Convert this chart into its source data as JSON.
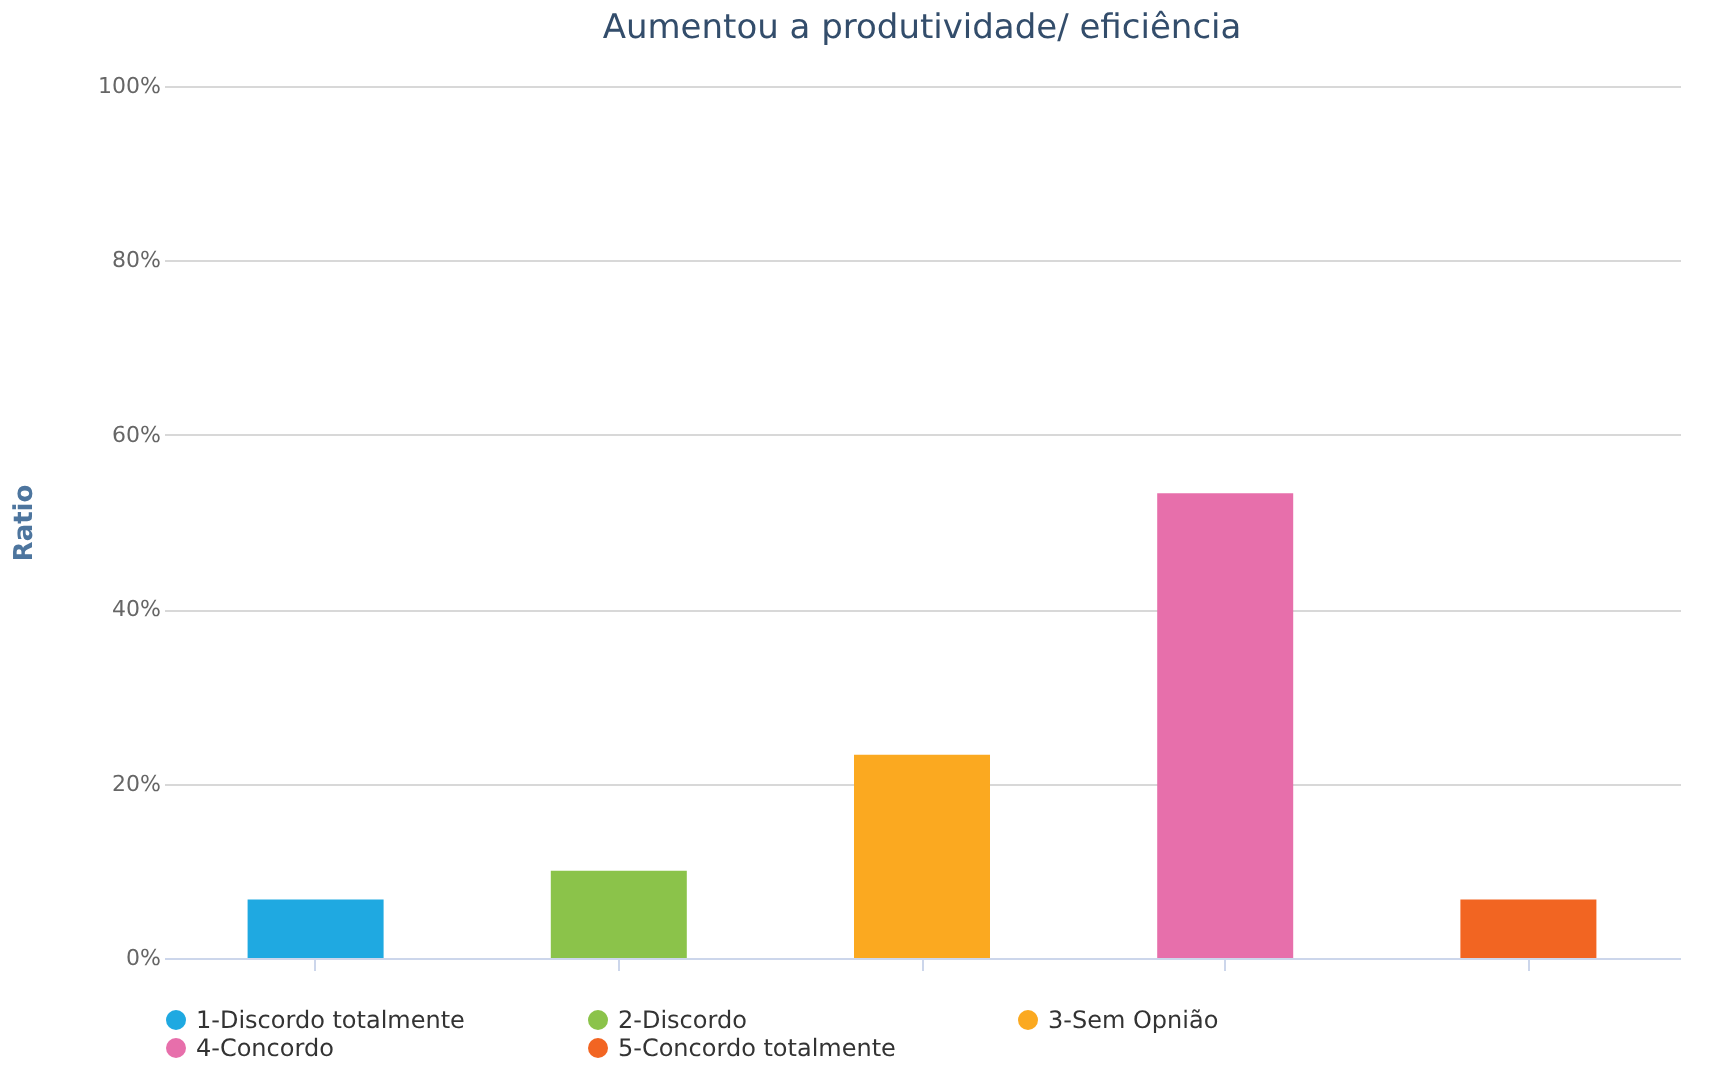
{
  "chart_data": {
    "type": "bar",
    "title": "Aumentou a produtividade/ eficiência",
    "ylabel": "Ratio",
    "categories": [
      null,
      null,
      null,
      null,
      null
    ],
    "series": [
      {
        "name": "1-Discordo totalmente",
        "color": "#1fa9e1",
        "values": [
          6.7,
          null,
          null,
          null,
          null
        ]
      },
      {
        "name": "2-Discordo",
        "color": "#8bc34a",
        "values": [
          null,
          10,
          null,
          null,
          null
        ]
      },
      {
        "name": "3-Sem Opnião",
        "color": "#fba920",
        "values": [
          null,
          null,
          23.3,
          null,
          null
        ]
      },
      {
        "name": "4-Concordo",
        "color": "#e76fab",
        "values": [
          null,
          null,
          null,
          53.3,
          null
        ]
      },
      {
        "name": "5-Concordo totalmente",
        "color": "#f26522",
        "values": [
          null,
          null,
          null,
          null,
          6.7
        ]
      }
    ],
    "ylim": [
      0,
      100
    ],
    "yticks": [
      {
        "value": 0,
        "label": "0%"
      },
      {
        "value": 20,
        "label": "20%"
      },
      {
        "value": 40,
        "label": "40%"
      },
      {
        "value": 60,
        "label": "60%"
      },
      {
        "value": 80,
        "label": "80%"
      },
      {
        "value": 100,
        "label": "100%"
      }
    ],
    "grid": "y",
    "legend": "bottom",
    "tick_labels": "y"
  }
}
